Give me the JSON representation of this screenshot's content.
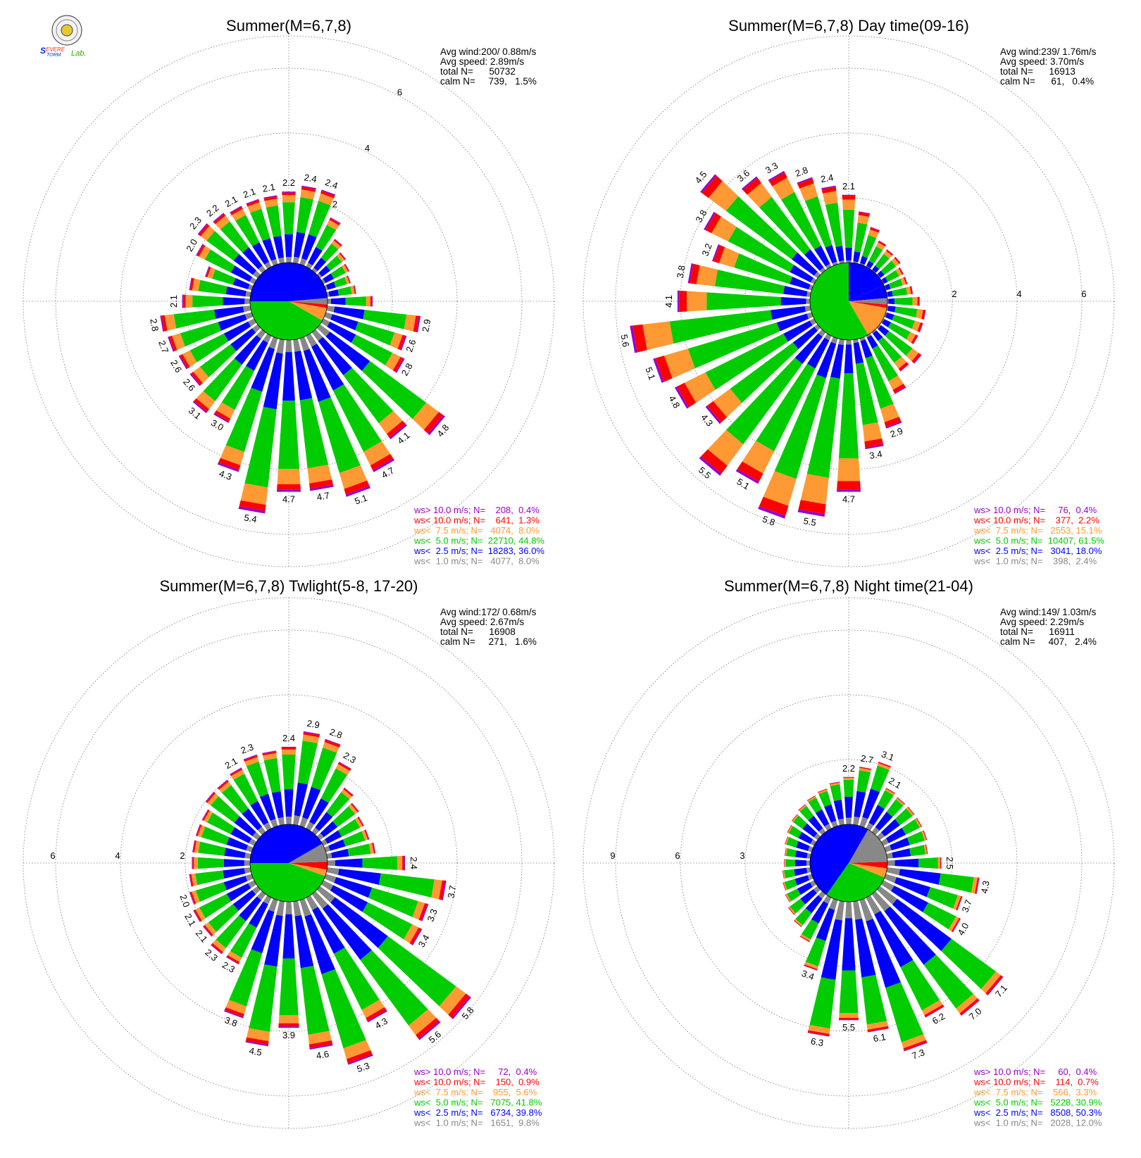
{
  "logo": {
    "text": "Severe Storm Lab."
  },
  "class_colors": {
    "lt1": "#888888",
    "lt25": "#0000ff",
    "lt5": "#00cc00",
    "lt75": "#ff9933",
    "lt10": "#ff0000",
    "gt10": "#9900cc"
  },
  "chart_data": [
    {
      "type": "polar-bar",
      "title": "Summer(M=6,7,8)",
      "stats": [
        "Avg wind:200/ 0.88m/s",
        "Avg speed: 2.89m/s",
        "total N=      50732",
        "calm N=     739,   1.5%"
      ],
      "rmax": 7,
      "rings": [
        2,
        4,
        6
      ],
      "ring_labels": [
        "2",
        "4",
        "6"
      ],
      "ring_label_angle": 30,
      "legend": [
        {
          "text": "ws> 10.0 m/s; N=    208,  0.4%",
          "color": "#9900cc"
        },
        {
          "text": "ws< 10.0 m/s; N=    641,  1.3%",
          "color": "#ff0000"
        },
        {
          "text": "ws<  7.5 m/s; N=   4074,  8.0%",
          "color": "#ff9933"
        },
        {
          "text": "ws<  5.0 m/s; N=  22710, 44.8%",
          "color": "#00cc00"
        },
        {
          "text": "ws<  2.5 m/s; N=  18283, 36.0%",
          "color": "#0000ff"
        },
        {
          "text": "ws<  1.0 m/s; N=   4077,  8.0%",
          "color": "#888888"
        }
      ],
      "pie": [
        {
          "from": 85,
          "to": 120,
          "color": "#888888"
        },
        {
          "from": 270,
          "to": 445,
          "color": "#0000ff"
        },
        {
          "from": 120,
          "to": 270,
          "color": "#00cc00"
        },
        {
          "from": 100,
          "to": 120,
          "color": "#ff9933"
        },
        {
          "from": 95,
          "to": 100,
          "color": "#ff0000"
        }
      ],
      "directions": [
        0,
        10,
        20,
        30,
        40,
        50,
        60,
        70,
        80,
        90,
        100,
        110,
        120,
        130,
        140,
        150,
        160,
        170,
        180,
        190,
        200,
        210,
        220,
        230,
        240,
        250,
        260,
        270,
        280,
        290,
        300,
        310,
        320,
        330,
        340,
        350
      ],
      "totals": [
        2.2,
        2.4,
        2.4,
        1.7,
        1.2,
        1.0,
        0.9,
        0.8,
        0.9,
        1.4,
        2.9,
        2.6,
        2.8,
        4.8,
        4.1,
        4.7,
        5.1,
        4.7,
        4.7,
        5.4,
        4.3,
        3.0,
        3.1,
        2.6,
        2.6,
        2.7,
        2.8,
        2.1,
        1.9,
        1.5,
        2.0,
        2.3,
        2.2,
        2.1,
        2.1,
        2.1
      ],
      "bar_labels": [
        "2.2",
        "2.4",
        "2.4",
        "",
        "",
        "",
        "",
        "",
        "",
        "",
        "2.9",
        "2.6",
        "2.8",
        "4.8",
        "4.1",
        "4.7",
        "5.1",
        "4.7",
        "4.7",
        "5.4",
        "4.3",
        "3.0",
        "3.1",
        "2.6",
        "2.6",
        "2.7",
        "2.8",
        "2.1",
        "",
        "",
        "2.0",
        "2.3",
        "2.2",
        "2.1",
        "2.1",
        "2.1"
      ]
    },
    {
      "type": "polar-bar",
      "title": "Summer(M=6,7,8) Day time(09-16)",
      "stats": [
        "Avg wind:239/ 1.76m/s",
        "Avg speed: 3.70m/s",
        "total N=      16913",
        "calm N=      61,   0.4%"
      ],
      "rmax": 7,
      "rings": [
        2,
        4,
        6
      ],
      "ring_labels": [
        "2",
        "4",
        "6"
      ],
      "ring_label_angle": 90,
      "legend": [
        {
          "text": "ws> 10.0 m/s; N=     76,  0.4%",
          "color": "#9900cc"
        },
        {
          "text": "ws< 10.0 m/s; N=    377,  2.2%",
          "color": "#ff0000"
        },
        {
          "text": "ws<  7.5 m/s; N=   2553, 15.1%",
          "color": "#ff9933"
        },
        {
          "text": "ws<  5.0 m/s; N=  10407, 61.5%",
          "color": "#00cc00"
        },
        {
          "text": "ws<  2.5 m/s; N=   3041, 18.0%",
          "color": "#0000ff"
        },
        {
          "text": "ws<  1.0 m/s; N=    398,  2.4%",
          "color": "#888888"
        }
      ],
      "pie": [
        {
          "from": 0,
          "to": 65,
          "color": "#0000ff"
        },
        {
          "from": 65,
          "to": 85,
          "color": "#0000ff"
        },
        {
          "from": 85,
          "to": 95,
          "color": "#888888"
        },
        {
          "from": 95,
          "to": 100,
          "color": "#ff0000"
        },
        {
          "from": 100,
          "to": 150,
          "color": "#ff9933"
        },
        {
          "from": 150,
          "to": 360,
          "color": "#00cc00"
        }
      ],
      "directions": [
        0,
        10,
        20,
        30,
        40,
        50,
        60,
        70,
        80,
        90,
        100,
        110,
        120,
        130,
        140,
        150,
        160,
        170,
        180,
        190,
        200,
        210,
        220,
        230,
        240,
        250,
        260,
        270,
        280,
        290,
        300,
        310,
        320,
        330,
        340,
        350
      ],
      "totals": [
        2.1,
        1.6,
        1.2,
        0.9,
        0.8,
        0.8,
        0.7,
        0.7,
        0.8,
        1.0,
        1.2,
        1.2,
        1.2,
        1.6,
        1.5,
        2.0,
        2.9,
        3.4,
        4.7,
        5.5,
        5.8,
        5.1,
        5.5,
        4.3,
        4.8,
        5.1,
        5.6,
        4.1,
        3.8,
        3.2,
        3.8,
        4.5,
        3.6,
        3.3,
        2.8,
        2.4
      ],
      "bar_labels": [
        "2.1",
        "",
        "",
        "",
        "",
        "",
        "",
        "",
        "",
        "",
        "",
        "",
        "",
        "",
        "",
        "",
        "2.9",
        "3.4",
        "4.7",
        "5.5",
        "5.8",
        "5.1",
        "5.5",
        "4.3",
        "4.8",
        "5.1",
        "5.6",
        "4.1",
        "3.8",
        "3.2",
        "3.8",
        "4.5",
        "3.6",
        "3.3",
        "2.8",
        "2.4"
      ]
    },
    {
      "type": "polar-bar",
      "title": "Summer(M=6,7,8) Twlight(5-8, 17-20)",
      "stats": [
        "Avg wind:172/ 0.68m/s",
        "Avg speed: 2.67m/s",
        "total N=      16908",
        "calm N=     271,   1.6%"
      ],
      "rmax": 7,
      "rings": [
        2,
        4,
        6
      ],
      "ring_labels": [
        "2",
        "4",
        "6"
      ],
      "ring_label_angle": 270,
      "legend": [
        {
          "text": "ws> 10.0 m/s; N=     72,  0.4%",
          "color": "#9900cc"
        },
        {
          "text": "ws< 10.0 m/s; N=    150,  0.9%",
          "color": "#ff0000"
        },
        {
          "text": "ws<  7.5 m/s; N=    955,  5.6%",
          "color": "#ff9933"
        },
        {
          "text": "ws<  5.0 m/s; N=   7075, 41.8%",
          "color": "#00cc00"
        },
        {
          "text": "ws<  2.5 m/s; N=   6734, 39.8%",
          "color": "#0000ff"
        },
        {
          "text": "ws<  1.0 m/s; N=   1651,  9.8%",
          "color": "#888888"
        }
      ],
      "pie": [
        {
          "from": 270,
          "to": 420,
          "color": "#0000ff"
        },
        {
          "from": 60,
          "to": 88,
          "color": "#888888"
        },
        {
          "from": 88,
          "to": 100,
          "color": "#ff0000"
        },
        {
          "from": 100,
          "to": 110,
          "color": "#ff9933"
        },
        {
          "from": 110,
          "to": 270,
          "color": "#00cc00"
        }
      ],
      "directions": [
        0,
        10,
        20,
        30,
        40,
        50,
        60,
        70,
        80,
        90,
        100,
        110,
        120,
        130,
        140,
        150,
        160,
        170,
        180,
        190,
        200,
        210,
        220,
        230,
        240,
        250,
        260,
        270,
        280,
        290,
        300,
        310,
        320,
        330,
        340,
        350
      ],
      "totals": [
        2.4,
        2.9,
        2.8,
        2.3,
        1.7,
        1.5,
        1.4,
        1.4,
        1.5,
        2.4,
        3.7,
        3.3,
        3.4,
        5.8,
        5.6,
        4.3,
        5.3,
        4.6,
        3.9,
        4.5,
        3.8,
        2.3,
        2.3,
        2.1,
        2.1,
        2.0,
        1.9,
        1.8,
        1.8,
        1.8,
        1.8,
        2.0,
        2.0,
        2.1,
        2.3,
        2.3
      ],
      "bar_labels": [
        "2.4",
        "2.9",
        "2.8",
        "2.3",
        "",
        "",
        "",
        "",
        "",
        "2.4",
        "3.7",
        "3.3",
        "3.4",
        "5.8",
        "5.6",
        "4.3",
        "5.3",
        "4.6",
        "3.9",
        "4.5",
        "3.8",
        "2.3",
        "2.3",
        "2.1",
        "2.1",
        "2.0",
        "",
        "",
        "",
        "",
        "",
        "",
        "",
        "2.1",
        "2.3",
        ""
      ]
    },
    {
      "type": "polar-bar",
      "title": "Summer(M=6,7,8) Night time(21-04)",
      "stats": [
        "Avg wind:149/ 1.03m/s",
        "Avg speed: 2.29m/s",
        "total N=      16911",
        "calm N=     407,   2.4%"
      ],
      "rmax": 10.5,
      "rings": [
        3,
        6,
        9
      ],
      "ring_labels": [
        "3",
        "6",
        "9"
      ],
      "ring_label_angle": 270,
      "legend": [
        {
          "text": "ws> 10.0 m/s; N=     60,  0.4%",
          "color": "#9900cc"
        },
        {
          "text": "ws< 10.0 m/s; N=    114,  0.7%",
          "color": "#ff0000"
        },
        {
          "text": "ws<  7.5 m/s; N=    566,  3.3%",
          "color": "#ff9933"
        },
        {
          "text": "ws<  5.0 m/s; N=   5228, 30.9%",
          "color": "#00cc00"
        },
        {
          "text": "ws<  2.5 m/s; N=   8508, 50.3%",
          "color": "#0000ff"
        },
        {
          "text": "ws<  1.0 m/s; N=   2028, 12.0%",
          "color": "#888888"
        }
      ],
      "pie": [
        {
          "from": 215,
          "to": 390,
          "color": "#0000ff"
        },
        {
          "from": 30,
          "to": 88,
          "color": "#888888"
        },
        {
          "from": 88,
          "to": 98,
          "color": "#ff0000"
        },
        {
          "from": 98,
          "to": 112,
          "color": "#ff9933"
        },
        {
          "from": 112,
          "to": 215,
          "color": "#00cc00"
        }
      ],
      "directions": [
        0,
        10,
        20,
        30,
        40,
        50,
        60,
        70,
        80,
        90,
        100,
        110,
        120,
        130,
        140,
        150,
        160,
        170,
        180,
        190,
        200,
        210,
        220,
        230,
        240,
        250,
        260,
        270,
        280,
        290,
        300,
        310,
        320,
        330,
        340,
        350
      ],
      "totals": [
        2.2,
        2.7,
        3.1,
        2.1,
        2.0,
        2.0,
        2.0,
        2.0,
        1.9,
        2.5,
        4.3,
        3.7,
        4.0,
        7.1,
        7.0,
        6.2,
        7.3,
        6.1,
        5.5,
        6.3,
        3.4,
        2.3,
        1.9,
        1.7,
        1.5,
        1.4,
        1.3,
        1.2,
        1.2,
        1.3,
        1.4,
        1.5,
        1.6,
        1.7,
        1.8,
        2.0
      ],
      "bar_labels": [
        "2.2",
        "2.7",
        "3.1",
        "2.1",
        "",
        "",
        "",
        "",
        "",
        "2.5",
        "4.3",
        "3.7",
        "4.0",
        "7.1",
        "7.0",
        "6.2",
        "7.3",
        "6.1",
        "5.5",
        "6.3",
        "3.4",
        "",
        "",
        "",
        "",
        "",
        "",
        "",
        "",
        "",
        "",
        "",
        "",
        "",
        "",
        ""
      ]
    }
  ]
}
